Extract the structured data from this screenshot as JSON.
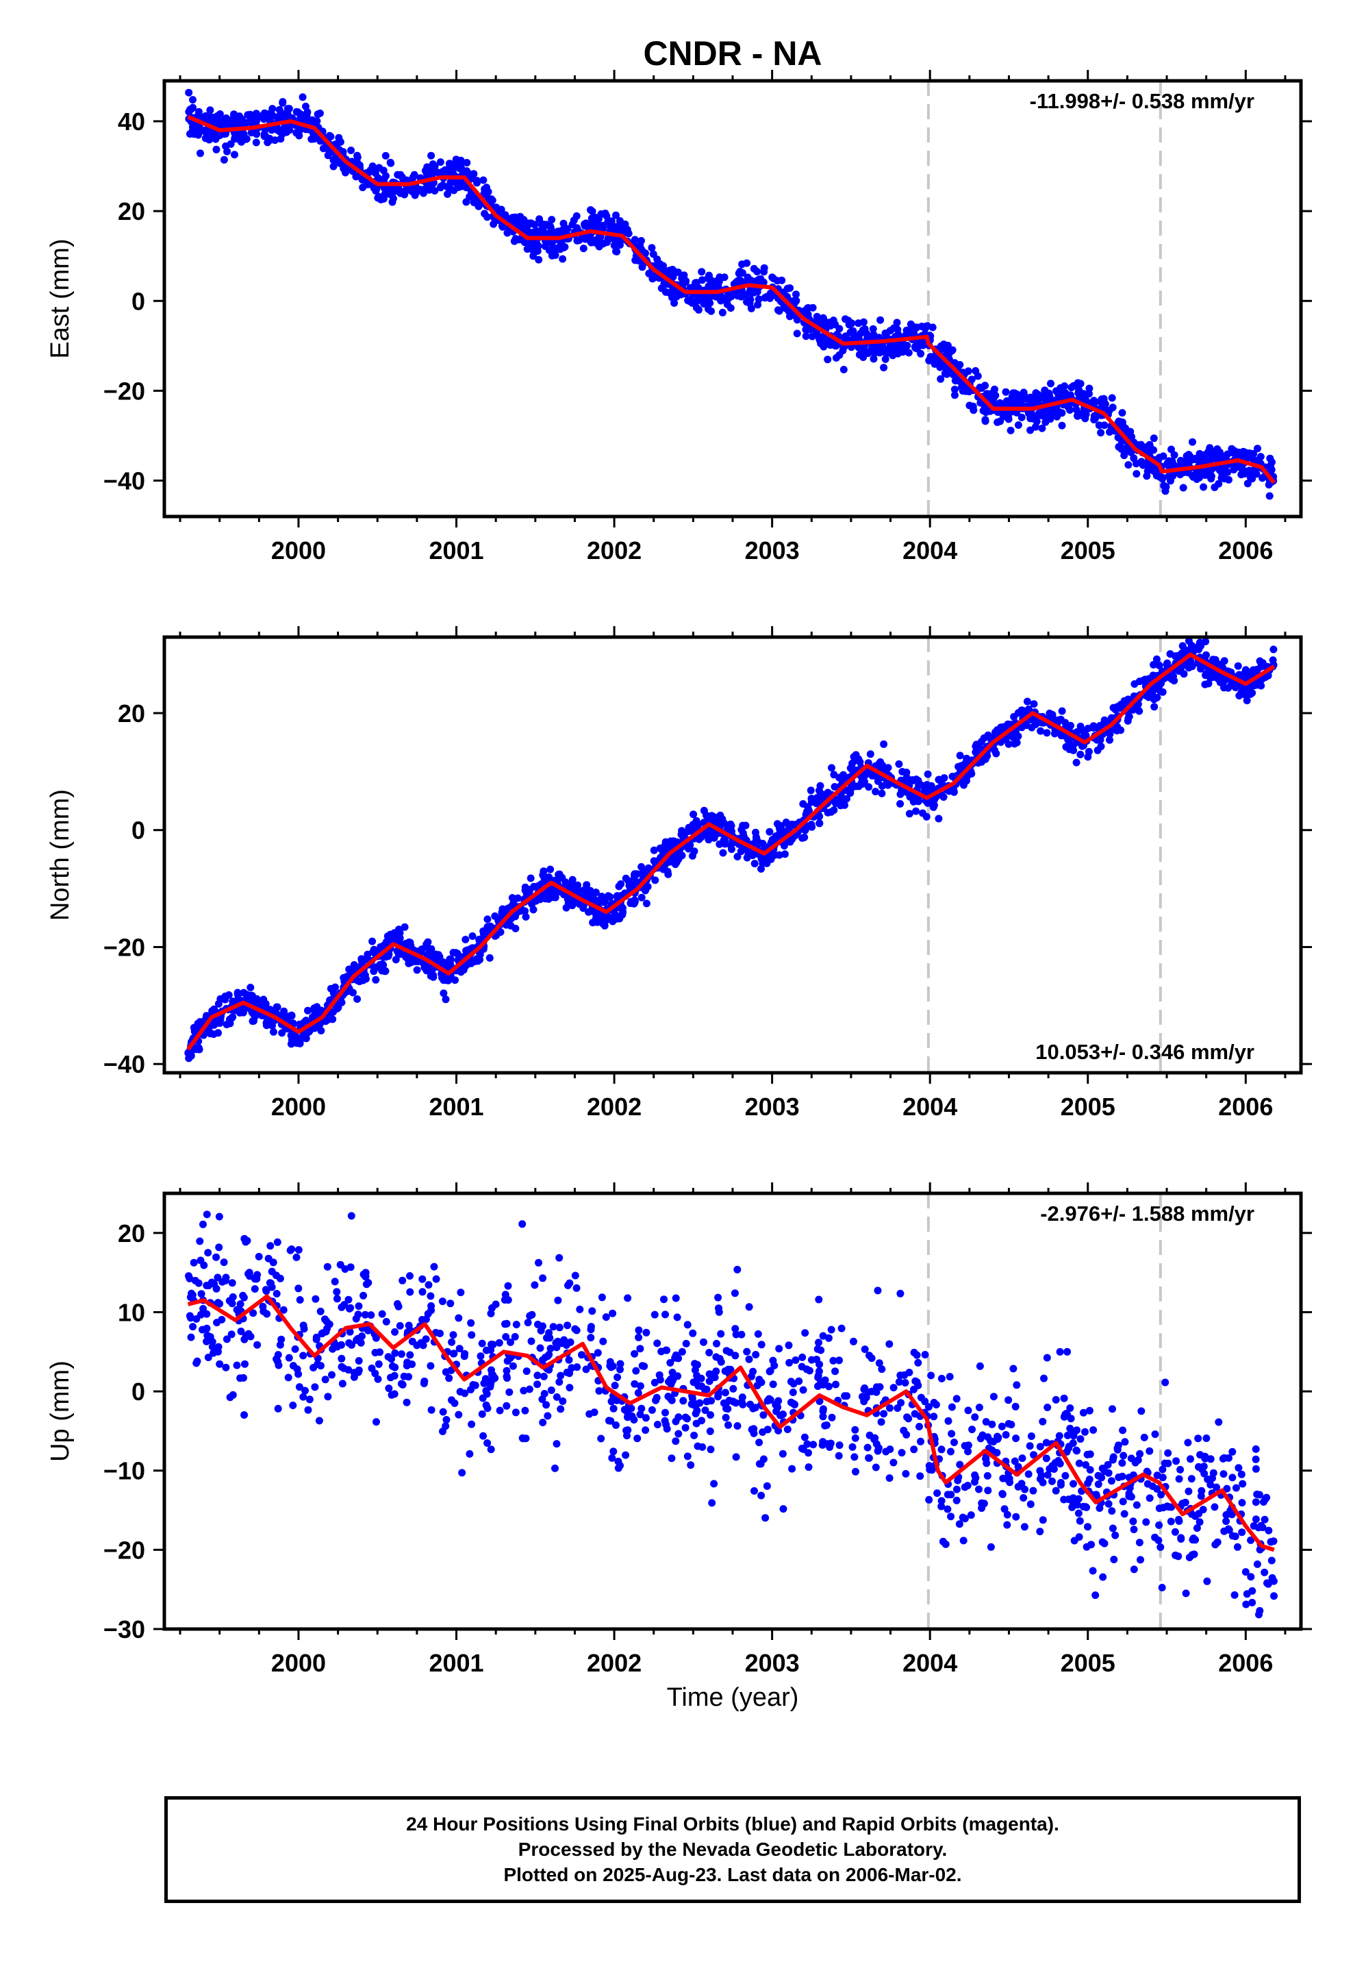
{
  "chart_data": {
    "type": "scatter",
    "title": "CNDR - NA",
    "x_ticks": [
      "2000",
      "2001",
      "2002",
      "2003",
      "2004",
      "2005",
      "2006"
    ],
    "xlim": [
      1999.15,
      2006.35
    ],
    "xlabel": "Time (year)",
    "last_data": "2006-03-02",
    "equipment_change_lines": [
      2003.99,
      2005.46
    ],
    "colors": {
      "points": "#0000ff",
      "model": "#ff0000",
      "dashed": "#c8c8c8"
    },
    "panels": [
      {
        "name": "east",
        "ylabel": "East (mm)",
        "ylim": [
          -48,
          49
        ],
        "y_ticks": [
          40,
          20,
          0,
          -20,
          -40
        ],
        "y_tick_labels": [
          "40",
          "20",
          "0",
          "−20",
          "−40"
        ],
        "rate_text": "-11.998+/- 0.538 mm/yr",
        "rate_position": "top-right",
        "model_points": [
          [
            1999.3,
            41
          ],
          [
            1999.5,
            38
          ],
          [
            1999.7,
            38.5
          ],
          [
            1999.95,
            40
          ],
          [
            2000.1,
            38.5
          ],
          [
            2000.3,
            31
          ],
          [
            2000.5,
            26
          ],
          [
            2000.7,
            26
          ],
          [
            2000.9,
            27.5
          ],
          [
            2001.05,
            27.5
          ],
          [
            2001.25,
            19
          ],
          [
            2001.45,
            14
          ],
          [
            2001.65,
            14
          ],
          [
            2001.85,
            15.5
          ],
          [
            2002.05,
            14.5
          ],
          [
            2002.25,
            7
          ],
          [
            2002.45,
            2
          ],
          [
            2002.65,
            2
          ],
          [
            2002.85,
            3.5
          ],
          [
            2003.0,
            3
          ],
          [
            2003.2,
            -4
          ],
          [
            2003.45,
            -9.5
          ],
          [
            2003.7,
            -9
          ],
          [
            2003.98,
            -8
          ],
          [
            2003.99,
            -9.5
          ],
          [
            2004.15,
            -15
          ],
          [
            2004.4,
            -24
          ],
          [
            2004.65,
            -24
          ],
          [
            2004.9,
            -22
          ],
          [
            2005.1,
            -25
          ],
          [
            2005.3,
            -33
          ],
          [
            2005.45,
            -36.5
          ],
          [
            2005.47,
            -38
          ],
          [
            2005.7,
            -37
          ],
          [
            2005.95,
            -35.5
          ],
          [
            2006.1,
            -37
          ],
          [
            2006.18,
            -40.5
          ]
        ],
        "observations": {
          "x_range": [
            1999.3,
            2006.18
          ],
          "scatter_mm": 2.0
        }
      },
      {
        "name": "north",
        "ylabel": "North (mm)",
        "ylim": [
          -41.5,
          33
        ],
        "y_ticks": [
          20,
          0,
          -20,
          -40
        ],
        "y_tick_labels": [
          "20",
          "0",
          "−20",
          "−40"
        ],
        "rate_text": "10.053+/- 0.346 mm/yr",
        "rate_position": "bottom-right",
        "model_points": [
          [
            1999.3,
            -37.5
          ],
          [
            1999.45,
            -32
          ],
          [
            1999.65,
            -29.5
          ],
          [
            1999.85,
            -32
          ],
          [
            2000.0,
            -34.5
          ],
          [
            2000.15,
            -32
          ],
          [
            2000.35,
            -25
          ],
          [
            2000.6,
            -19.5
          ],
          [
            2000.8,
            -22
          ],
          [
            2000.95,
            -24.5
          ],
          [
            2001.15,
            -20
          ],
          [
            2001.35,
            -14
          ],
          [
            2001.6,
            -9
          ],
          [
            2001.8,
            -12
          ],
          [
            2001.95,
            -14
          ],
          [
            2002.15,
            -10
          ],
          [
            2002.35,
            -4
          ],
          [
            2002.6,
            1
          ],
          [
            2002.8,
            -2
          ],
          [
            2002.95,
            -4
          ],
          [
            2003.15,
            0
          ],
          [
            2003.35,
            5
          ],
          [
            2003.6,
            11
          ],
          [
            2003.8,
            8
          ],
          [
            2003.98,
            5.5
          ],
          [
            2004.15,
            8
          ],
          [
            2004.4,
            15
          ],
          [
            2004.65,
            20
          ],
          [
            2004.85,
            17
          ],
          [
            2004.98,
            15
          ],
          [
            2005.15,
            18
          ],
          [
            2005.4,
            25
          ],
          [
            2005.65,
            30
          ],
          [
            2005.85,
            27
          ],
          [
            2006.0,
            25
          ],
          [
            2006.18,
            28
          ]
        ],
        "observations": {
          "x_range": [
            1999.3,
            2006.18
          ],
          "scatter_mm": 1.4
        }
      },
      {
        "name": "up",
        "ylabel": "Up (mm)",
        "ylim": [
          -30,
          25
        ],
        "y_ticks": [
          20,
          10,
          0,
          -10,
          -20,
          -30
        ],
        "y_tick_labels": [
          "20",
          "10",
          "0",
          "−10",
          "−20",
          "−30"
        ],
        "rate_text": "-2.976+/- 1.588 mm/yr",
        "rate_position": "top-right",
        "model_points": [
          [
            1999.3,
            11
          ],
          [
            1999.4,
            11.5
          ],
          [
            1999.6,
            9
          ],
          [
            1999.8,
            12
          ],
          [
            1999.95,
            8
          ],
          [
            2000.1,
            4.5
          ],
          [
            2000.3,
            8
          ],
          [
            2000.45,
            8.5
          ],
          [
            2000.6,
            5.5
          ],
          [
            2000.8,
            8.5
          ],
          [
            2000.95,
            4
          ],
          [
            2001.05,
            1.5
          ],
          [
            2001.3,
            5
          ],
          [
            2001.45,
            4.5
          ],
          [
            2001.55,
            3
          ],
          [
            2001.8,
            6
          ],
          [
            2001.95,
            0.5
          ],
          [
            2002.1,
            -1.5
          ],
          [
            2002.3,
            0.5
          ],
          [
            2002.45,
            0
          ],
          [
            2002.6,
            -0.5
          ],
          [
            2002.8,
            3
          ],
          [
            2002.95,
            -2
          ],
          [
            2003.05,
            -4.5
          ],
          [
            2003.3,
            -0.5
          ],
          [
            2003.45,
            -2
          ],
          [
            2003.6,
            -3
          ],
          [
            2003.85,
            0
          ],
          [
            2003.98,
            -3.5
          ],
          [
            2004.05,
            -10
          ],
          [
            2004.1,
            -11.5
          ],
          [
            2004.35,
            -7.5
          ],
          [
            2004.55,
            -10.5
          ],
          [
            2004.8,
            -6.5
          ],
          [
            2004.95,
            -11.5
          ],
          [
            2005.05,
            -14
          ],
          [
            2005.35,
            -10.5
          ],
          [
            2005.45,
            -11.5
          ],
          [
            2005.6,
            -15.5
          ],
          [
            2005.85,
            -12.5
          ],
          [
            2006.0,
            -17
          ],
          [
            2006.1,
            -19.5
          ],
          [
            2006.18,
            -20
          ]
        ],
        "observations": {
          "x_range": [
            1999.3,
            2006.18
          ],
          "scatter_mm": 5.0
        }
      }
    ]
  },
  "footer": {
    "line1": "24 Hour Positions Using Final Orbits (blue) and Rapid Orbits (magenta).",
    "line2": "Processed by the Nevada Geodetic Laboratory.",
    "line3": "Plotted on 2025-Aug-23. Last data on 2006-Mar-02."
  }
}
